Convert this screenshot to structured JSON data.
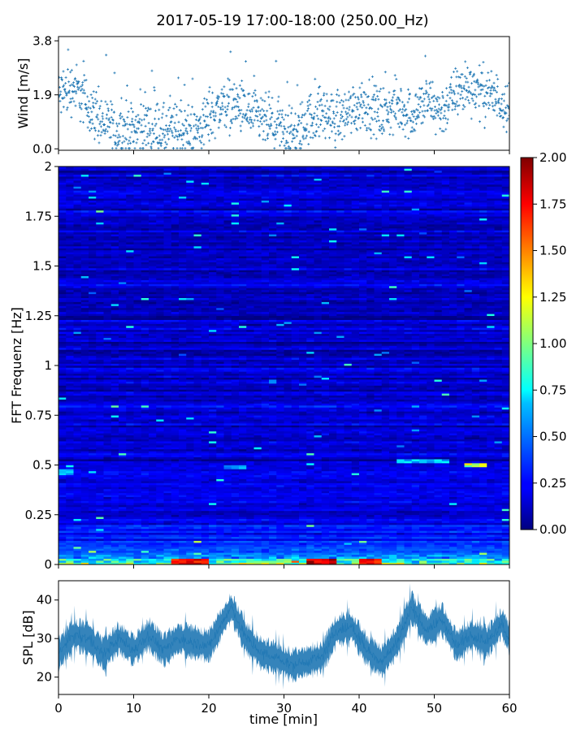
{
  "figure": {
    "title": "2017-05-19 17:00-18:00 (250.00_Hz)"
  },
  "chart_data": [
    {
      "type": "scatter",
      "ylabel": "Wind [m/s]",
      "xlabel": "",
      "ylim": [
        -0.05,
        3.95
      ],
      "xlim": [
        0,
        60
      ],
      "yticks": [
        0.0,
        1.9,
        3.8
      ],
      "ytick_labels": [
        "0.0",
        "1.9",
        "3.8"
      ],
      "xticks": [
        0,
        10,
        20,
        30,
        40,
        50,
        60
      ],
      "grid": false,
      "color": "#1f77b4",
      "marker": "+",
      "trend": [
        {
          "x": 0,
          "y": 1.8
        },
        {
          "x": 2,
          "y": 2.2
        },
        {
          "x": 4,
          "y": 1.5
        },
        {
          "x": 6,
          "y": 0.9
        },
        {
          "x": 8,
          "y": 0.65
        },
        {
          "x": 10,
          "y": 0.7
        },
        {
          "x": 12,
          "y": 0.85
        },
        {
          "x": 14,
          "y": 0.55
        },
        {
          "x": 16,
          "y": 0.7
        },
        {
          "x": 18,
          "y": 0.55
        },
        {
          "x": 20,
          "y": 1.1
        },
        {
          "x": 22,
          "y": 1.6
        },
        {
          "x": 24,
          "y": 1.5
        },
        {
          "x": 26,
          "y": 1.1
        },
        {
          "x": 28,
          "y": 0.9
        },
        {
          "x": 30,
          "y": 0.6
        },
        {
          "x": 31.5,
          "y": 0.45
        },
        {
          "x": 33,
          "y": 1.0
        },
        {
          "x": 35,
          "y": 1.3
        },
        {
          "x": 37,
          "y": 1.0
        },
        {
          "x": 39,
          "y": 1.4
        },
        {
          "x": 41,
          "y": 1.6
        },
        {
          "x": 43,
          "y": 1.2
        },
        {
          "x": 45,
          "y": 1.5
        },
        {
          "x": 47,
          "y": 1.2
        },
        {
          "x": 49,
          "y": 1.7
        },
        {
          "x": 51,
          "y": 1.3
        },
        {
          "x": 53,
          "y": 2.0
        },
        {
          "x": 55,
          "y": 2.2
        },
        {
          "x": 57,
          "y": 1.9
        },
        {
          "x": 59,
          "y": 1.7
        },
        {
          "x": 60,
          "y": 1.6
        }
      ]
    },
    {
      "type": "heatmap",
      "ylabel": "FFT Frequenz [Hz]",
      "xlabel": "",
      "xlim": [
        0,
        60
      ],
      "ylim": [
        0,
        2
      ],
      "yticks": [
        0,
        0.25,
        0.5,
        0.75,
        1,
        1.25,
        1.5,
        1.75,
        2
      ],
      "ytick_labels": [
        "0",
        "0.25",
        "0.5",
        "0.75",
        "1",
        "1.25",
        "1.5",
        "1.75",
        "2"
      ],
      "xticks": [
        0,
        10,
        20,
        30,
        40,
        50,
        60
      ],
      "colormap": "jet",
      "colorbar": {
        "vmin": 0.0,
        "vmax": 2.0,
        "ticks": [
          0.0,
          0.25,
          0.5,
          0.75,
          1.0,
          1.25,
          1.5,
          1.75,
          2.0
        ],
        "tick_labels": [
          "0.00",
          "0.25",
          "0.50",
          "0.75",
          "1.00",
          "1.25",
          "1.50",
          "1.75",
          "2.00"
        ]
      },
      "band_highlights": [
        {
          "x_range": [
            0,
            2
          ],
          "freq": 0.47,
          "level": 0.7
        },
        {
          "x_range": [
            22,
            25
          ],
          "freq": 0.49,
          "level": 0.6
        },
        {
          "x_range": [
            45,
            52
          ],
          "freq": 0.52,
          "level": 0.7
        },
        {
          "x_range": [
            54,
            57
          ],
          "freq": 0.5,
          "level": 1.2
        }
      ],
      "low_freq_peaks": [
        {
          "x_range": [
            15,
            20
          ],
          "freq": 0.01,
          "level": 1.9
        },
        {
          "x_range": [
            33,
            37
          ],
          "freq": 0.01,
          "level": 2.0
        },
        {
          "x_range": [
            40,
            43
          ],
          "freq": 0.01,
          "level": 1.9
        }
      ],
      "grid": false
    },
    {
      "type": "line",
      "ylabel": "SPL [dB]",
      "xlabel": "time [min]",
      "xlim": [
        0,
        60
      ],
      "ylim": [
        15.5,
        45
      ],
      "yticks": [
        20,
        30,
        40
      ],
      "xticks": [
        0,
        10,
        20,
        30,
        40,
        50,
        60
      ],
      "xtick_labels": [
        "0",
        "10",
        "20",
        "30",
        "40",
        "50",
        "60"
      ],
      "color": "#1f77b4",
      "grid": false,
      "series": [
        {
          "x": [
            0,
            2,
            4,
            6,
            8,
            10,
            12,
            14,
            16,
            18,
            20,
            22,
            23,
            25,
            27,
            29,
            31,
            33,
            35,
            37,
            39,
            41,
            43,
            45,
            47,
            49,
            51,
            53,
            55,
            57,
            59,
            60
          ],
          "values": [
            26,
            31,
            30,
            26,
            30,
            27,
            31,
            27,
            30,
            29,
            28,
            35,
            38,
            30,
            26,
            25,
            23,
            24,
            25,
            32,
            33,
            27,
            24,
            29,
            38,
            32,
            35,
            28,
            31,
            29,
            34,
            30
          ],
          "band": 3.5
        }
      ]
    }
  ]
}
